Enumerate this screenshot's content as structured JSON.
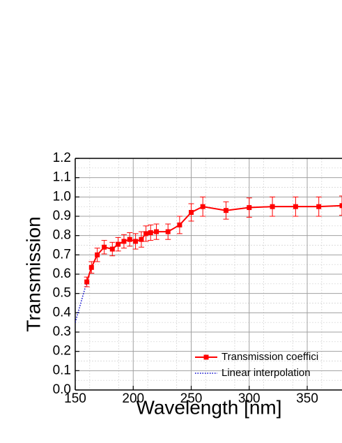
{
  "chart_data": {
    "type": "line",
    "xlabel": "Wavelength [nm]",
    "ylabel": "Transmission",
    "xlim": [
      150,
      380
    ],
    "ylim": [
      0.0,
      1.2
    ],
    "x_ticks": [
      150,
      200,
      250,
      300,
      350
    ],
    "x_tick_labels": [
      "150",
      "200",
      "250",
      "300",
      "350"
    ],
    "y_ticks": [
      0.0,
      0.1,
      0.2,
      0.3,
      0.4,
      0.5,
      0.6,
      0.7,
      0.8,
      0.9,
      1.0,
      1.1,
      1.2
    ],
    "y_tick_labels": [
      "0.0",
      "0.1",
      "0.2",
      "0.3",
      "0.4",
      "0.5",
      "0.6",
      "0.7",
      "0.8",
      "0.9",
      "1.0",
      "1.1",
      "1.2"
    ],
    "grid": true,
    "legend_position": "bottom-right",
    "series": [
      {
        "name": "Transmission coeffici",
        "color": "#ff0000",
        "marker": "square",
        "x": [
          160,
          164,
          169,
          175,
          182,
          187,
          192,
          197,
          202,
          207,
          211,
          215,
          220,
          230,
          240,
          250,
          260,
          280,
          300,
          320,
          340,
          360,
          380
        ],
        "y": [
          0.56,
          0.635,
          0.7,
          0.74,
          0.73,
          0.755,
          0.77,
          0.78,
          0.77,
          0.78,
          0.81,
          0.815,
          0.82,
          0.82,
          0.855,
          0.92,
          0.95,
          0.93,
          0.945,
          0.95,
          0.95,
          0.95,
          0.955
        ],
        "yerr": [
          0.025,
          0.03,
          0.035,
          0.035,
          0.035,
          0.035,
          0.035,
          0.035,
          0.04,
          0.04,
          0.04,
          0.04,
          0.04,
          0.04,
          0.045,
          0.045,
          0.05,
          0.045,
          0.05,
          0.05,
          0.05,
          0.05,
          0.05
        ]
      },
      {
        "name": "Linear interpolation",
        "color": "#0000cc",
        "style": "dotted",
        "x": [
          150,
          160,
          164,
          169,
          175
        ],
        "y": [
          0.35,
          0.56,
          0.635,
          0.7,
          0.74
        ]
      }
    ]
  }
}
